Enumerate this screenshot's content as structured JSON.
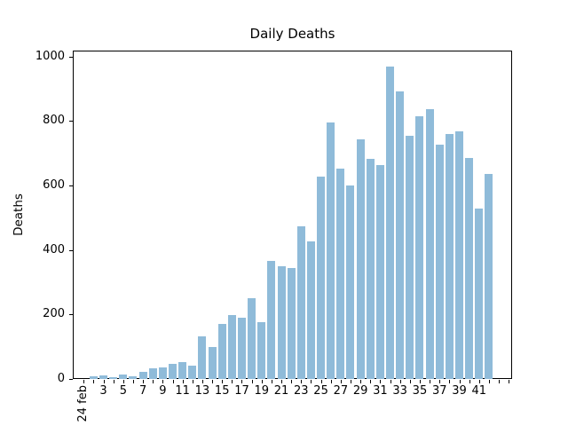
{
  "chart_data": {
    "type": "bar",
    "title": "Daily Deaths",
    "xlabel": "",
    "ylabel": "Deaths",
    "x": [
      1,
      2,
      3,
      4,
      5,
      6,
      7,
      8,
      9,
      10,
      11,
      12,
      13,
      14,
      15,
      16,
      17,
      18,
      19,
      20,
      21,
      22,
      23,
      24,
      25,
      26,
      27,
      28,
      29,
      30,
      31,
      32,
      33,
      34,
      35,
      36,
      37,
      38,
      39,
      40,
      41,
      42
    ],
    "values": [
      0,
      7,
      12,
      5,
      14,
      8,
      21,
      33,
      35,
      48,
      52,
      40,
      133,
      99,
      170,
      197,
      190,
      251,
      176,
      365,
      350,
      345,
      474,
      426,
      628,
      794,
      651,
      600,
      743,
      683,
      662,
      968,
      890,
      755,
      813,
      837,
      727,
      760,
      768,
      685,
      527,
      636
    ],
    "xtick_label_positions": [
      1,
      3,
      5,
      7,
      9,
      11,
      13,
      15,
      17,
      19,
      21,
      23,
      25,
      27,
      29,
      31,
      33,
      35,
      37,
      39,
      41
    ],
    "xtick_labels": [
      "24 feb",
      "3",
      "5",
      "7",
      "9",
      "11",
      "13",
      "15",
      "17",
      "19",
      "21",
      "23",
      "25",
      "27",
      "29",
      "31",
      "33",
      "35",
      "37",
      "39",
      "41"
    ],
    "first_xtick_label_rotated": true,
    "n_x_positions": 44,
    "yticks": [
      0,
      200,
      400,
      600,
      800,
      1000
    ],
    "ylim": [
      0,
      1018
    ],
    "grid": false,
    "legend": false,
    "bar_color": "#8FBBD9",
    "spine_color": "#000000",
    "background_color": "#ffffff"
  }
}
